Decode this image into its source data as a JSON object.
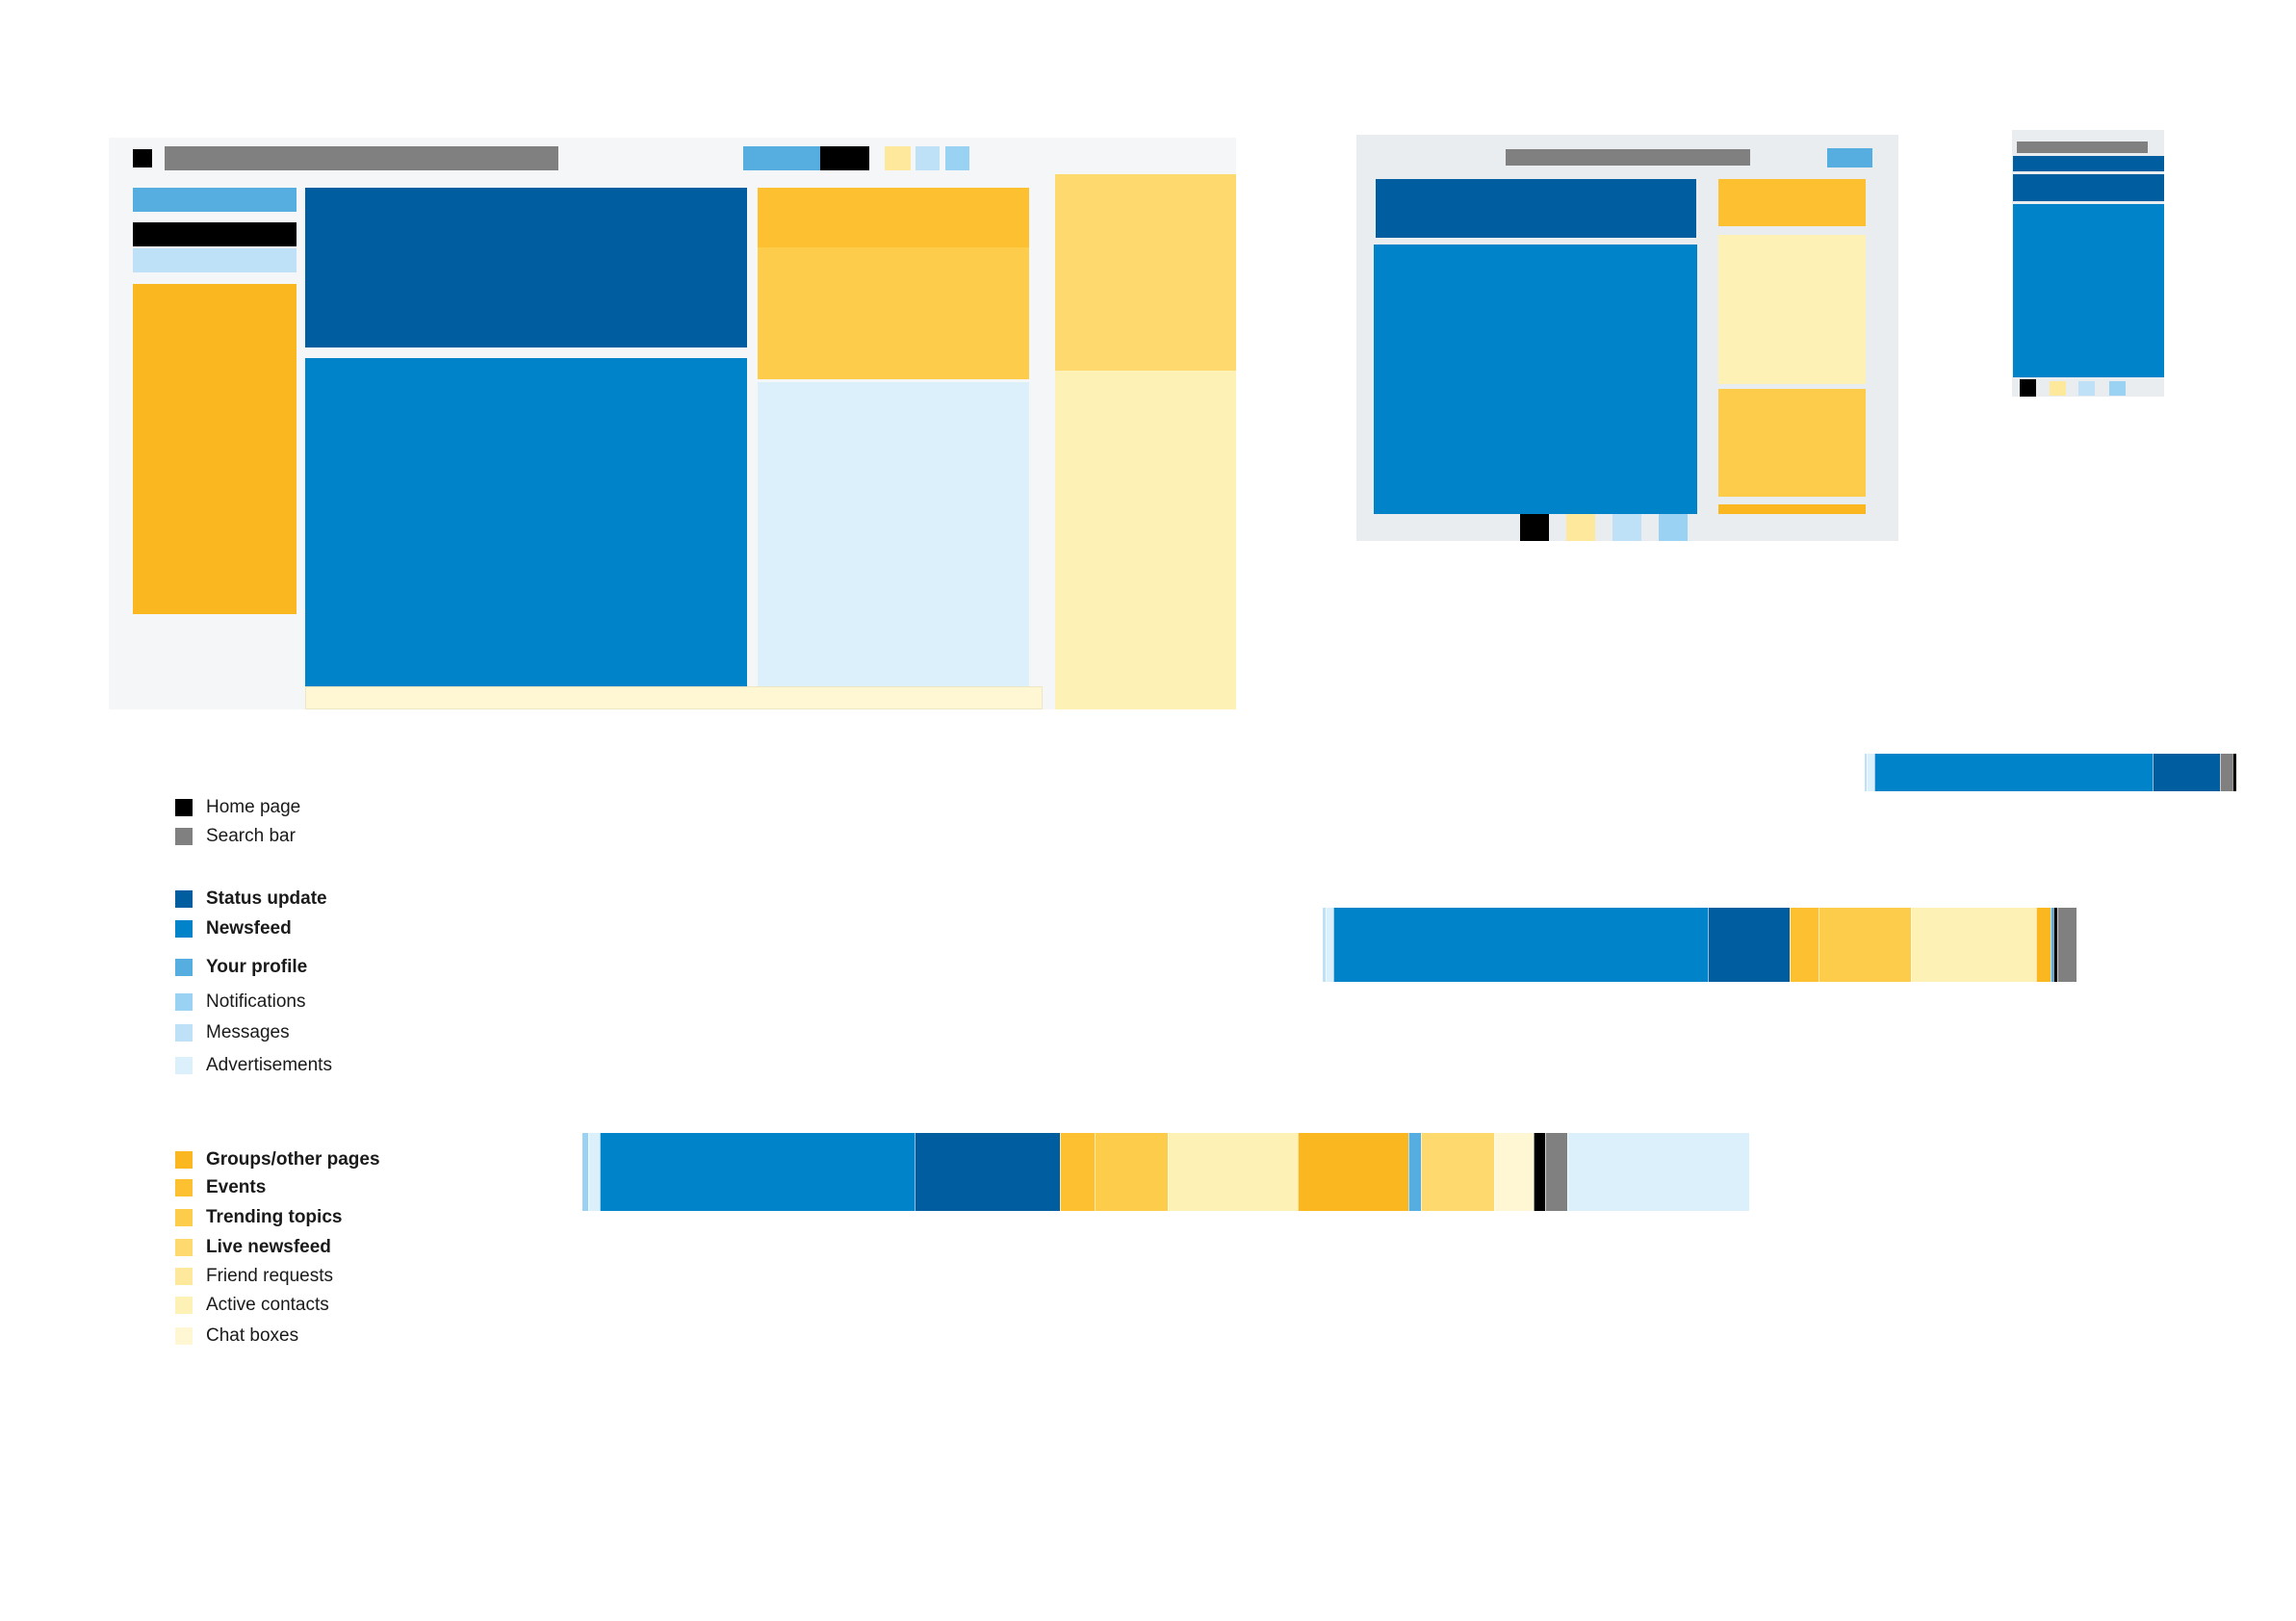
{
  "colors": {
    "home_page": "#000000",
    "search_bar": "#808080",
    "status_update": "#005ea0",
    "newsfeed": "#0083c8",
    "your_profile": "#56aee0",
    "notifications": "#9ad2f4",
    "messages": "#bfe1f8",
    "advertisements": "#dcf0fc",
    "groups_other_pages": "#fbb71f",
    "events": "#fcc030",
    "trending_topics": "#fdcc4b",
    "live_newsfeed": "#fdd96e",
    "friend_requests": "#fde89c",
    "active_contacts": "#fef1b6",
    "chat_boxes": "#fff6d3",
    "frame_bg": "#f5f6f8",
    "tablet_bg": "#eaedf0"
  },
  "legend": {
    "group1": [
      {
        "key": "home_page",
        "label": "Home page",
        "bold": false
      },
      {
        "key": "search_bar",
        "label": "Search bar",
        "bold": false
      }
    ],
    "group2": [
      {
        "key": "status_update",
        "label": "Status update",
        "bold": true
      },
      {
        "key": "newsfeed",
        "label": "Newsfeed",
        "bold": true
      },
      {
        "key": "your_profile",
        "label": "Your profile",
        "bold": true
      },
      {
        "key": "notifications",
        "label": "Notifications",
        "bold": false
      },
      {
        "key": "messages",
        "label": "Messages",
        "bold": false
      },
      {
        "key": "advertisements",
        "label": "Advertisements",
        "bold": false
      }
    ],
    "group3": [
      {
        "key": "groups_other_pages",
        "label": "Groups/other pages",
        "bold": true
      },
      {
        "key": "events",
        "label": "Events",
        "bold": true
      },
      {
        "key": "trending_topics",
        "label": "Trending topics",
        "bold": true
      },
      {
        "key": "live_newsfeed",
        "label": "Live newsfeed",
        "bold": true
      },
      {
        "key": "friend_requests",
        "label": "Friend requests",
        "bold": false
      },
      {
        "key": "active_contacts",
        "label": "Active contacts",
        "bold": false
      },
      {
        "key": "chat_boxes",
        "label": "Chat boxes",
        "bold": false
      }
    ]
  },
  "bars": {
    "mobile": [
      {
        "key": "messages",
        "share": 0.5
      },
      {
        "key": "advertisements",
        "share": 2.0
      },
      {
        "key": "newsfeed",
        "share": 75.0
      },
      {
        "key": "status_update",
        "share": 18.0
      },
      {
        "key": "search_bar",
        "share": 3.5
      },
      {
        "key": "home_page",
        "share": 1.0
      }
    ],
    "tablet": [
      {
        "key": "messages",
        "share": 0.4
      },
      {
        "key": "advertisements",
        "share": 1.0
      },
      {
        "key": "newsfeed",
        "share": 49.7
      },
      {
        "key": "status_update",
        "share": 10.9
      },
      {
        "key": "events",
        "share": 3.8
      },
      {
        "key": "trending_topics",
        "share": 12.3
      },
      {
        "key": "active_contacts",
        "share": 16.6
      },
      {
        "key": "groups_other_pages",
        "share": 1.9
      },
      {
        "key": "your_profile",
        "share": 0.4
      },
      {
        "key": "home_page",
        "share": 0.4
      },
      {
        "key": "search_bar",
        "share": 2.6
      }
    ],
    "desktop": [
      {
        "key": "notifications",
        "share": 0.5
      },
      {
        "key": "advertisements",
        "share": 1.0
      },
      {
        "key": "newsfeed",
        "share": 27.0
      },
      {
        "key": "status_update",
        "share": 12.4
      },
      {
        "key": "events",
        "share": 3.0
      },
      {
        "key": "trending_topics",
        "share": 6.3
      },
      {
        "key": "active_contacts",
        "share": 11.1
      },
      {
        "key": "groups_other_pages",
        "share": 9.5
      },
      {
        "key": "your_profile",
        "share": 1.1
      },
      {
        "key": "live_newsfeed",
        "share": 6.2
      },
      {
        "key": "chat_boxes",
        "share": 3.4
      },
      {
        "key": "home_page",
        "share": 1.0
      },
      {
        "key": "search_bar",
        "share": 1.9
      },
      {
        "key": "advertisements",
        "share": 15.6
      }
    ]
  }
}
